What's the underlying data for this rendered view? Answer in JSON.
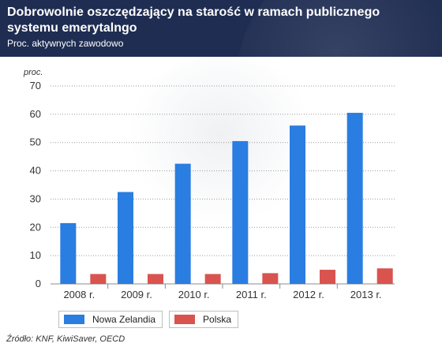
{
  "header": {
    "title": "Dobrowolnie oszczędzający na starość w ramach publicznego systemu emerytalngo",
    "subtitle": "Proc. aktywnych zawodowo"
  },
  "chart_data": {
    "type": "bar",
    "title": "Dobrowolnie oszczędzający na starość w ramach publicznego systemu emerytalngo",
    "subtitle": "Proc. aktywnych zawodowo",
    "ylabel": "proc.",
    "xlabel": "",
    "categories": [
      "2008 r.",
      "2009 r.",
      "2010 r.",
      "2011 r.",
      "2012 r.",
      "2013 r."
    ],
    "series": [
      {
        "name": "Nowa Zelandia",
        "color": "#2a7de1",
        "values": [
          21.5,
          32.5,
          42.5,
          50.5,
          56,
          60.5
        ]
      },
      {
        "name": "Polska",
        "color": "#d9534f",
        "values": [
          3.5,
          3.5,
          3.5,
          3.8,
          5,
          5.5
        ]
      }
    ],
    "ylim": [
      0,
      70
    ],
    "yticks": [
      0,
      10,
      20,
      30,
      40,
      50,
      60,
      70
    ],
    "grid": true,
    "legend": "bottom-left"
  },
  "source": "Źródło: KNF, KiwiSaver, OECD"
}
